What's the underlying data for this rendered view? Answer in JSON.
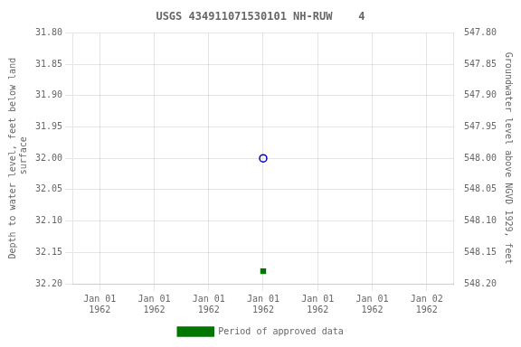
{
  "chart_data": {
    "type": "scatter",
    "title": "USGS 434911071530101 NH-RUW    4",
    "y_label": "Depth to water level, feet below land\n surface",
    "y2_label": "Groundwater level above NGVD 1929, feet",
    "categories": [
      "Jan 01\n1962",
      "Jan 01\n1962",
      "Jan 01\n1962",
      "Jan 01\n1962",
      "Jan 01\n1962",
      "Jan 01\n1962",
      "Jan 02\n1962"
    ],
    "series": [
      {
        "values": [
          null,
          null,
          null,
          32.0,
          null,
          null,
          null
        ],
        "color": "#0000bb",
        "marker": "open_circle"
      },
      {
        "name": "Period of approved data",
        "values": [
          null,
          null,
          null,
          32.18,
          null,
          null,
          null
        ],
        "color": "#007700",
        "marker": "square"
      }
    ],
    "ylim": [
      32.2,
      31.8
    ],
    "yticks": [
      {
        "value": 31.8,
        "label": "31.80"
      },
      31.85,
      {
        "value": 31.9,
        "label": "31.90"
      },
      31.95,
      {
        "value": 32.0,
        "label": "32.00"
      },
      32.05,
      {
        "value": 32.1,
        "label": "32.10"
      },
      32.15,
      {
        "value": 32.2,
        "label": "32.20"
      }
    ],
    "y2lim": [
      548.2,
      547.8
    ],
    "y2ticks": [
      {
        "value": 547.8,
        "label": "547.80"
      },
      547.85,
      {
        "value": 547.9,
        "label": "547.90"
      },
      547.95,
      {
        "value": 548.0,
        "label": "548.00"
      },
      548.05,
      {
        "value": 548.1,
        "label": "548.10"
      },
      548.15,
      {
        "value": 548.2,
        "label": "548.20"
      }
    ],
    "grid": true,
    "legend": "bottom"
  }
}
